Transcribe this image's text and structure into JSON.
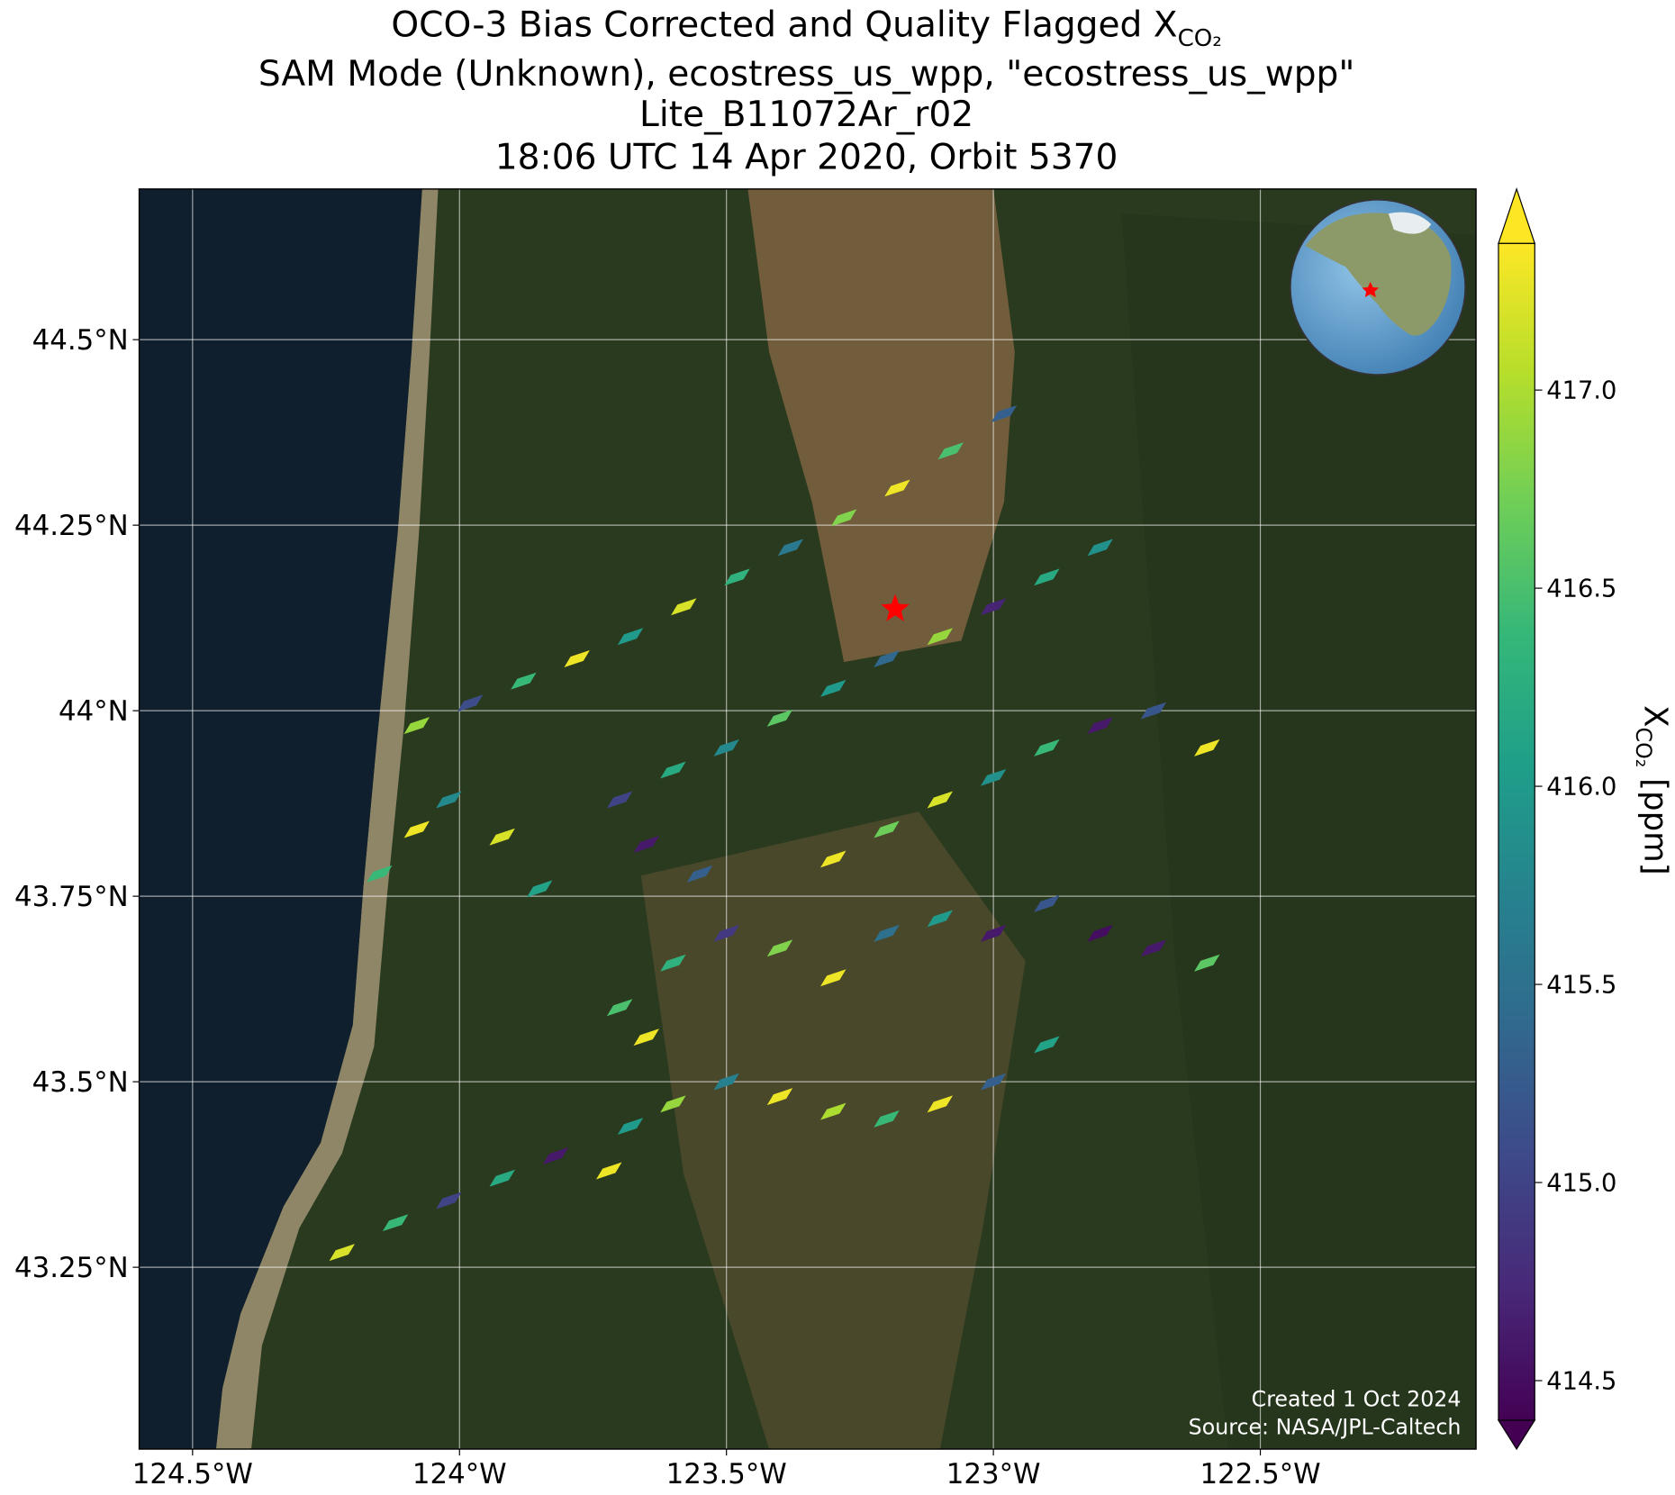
{
  "chart_data": {
    "type": "map",
    "title": {
      "line1": "OCO-3 Bias Corrected and Quality Flagged X",
      "line1_sub": "CO₂",
      "line2": "SAM Mode (Unknown), ecostress_us_wpp, \"ecostress_us_wpp\"",
      "line3": "Lite_B11072Ar_r02",
      "line4": "18:06 UTC 14 Apr 2020, Orbit 5370"
    },
    "xlim": [
      -124.6,
      -122.096
    ],
    "ylim": [
      43.005,
      44.703
    ],
    "xticks": [
      {
        "value": -124.5,
        "label": "124.5°W"
      },
      {
        "value": -124,
        "label": "124°W"
      },
      {
        "value": -123.5,
        "label": "123.5°W"
      },
      {
        "value": -123,
        "label": "123°W"
      },
      {
        "value": -122.5,
        "label": "122.5°W"
      }
    ],
    "yticks": [
      {
        "value": 44.5,
        "label": "44.5°N"
      },
      {
        "value": 44.25,
        "label": "44.25°N"
      },
      {
        "value": 44,
        "label": "44°N"
      },
      {
        "value": 43.75,
        "label": "43.75°N"
      },
      {
        "value": 43.5,
        "label": "43.5°N"
      },
      {
        "value": 43.25,
        "label": "43.25°N"
      }
    ],
    "grid": true,
    "colormap": "viridis",
    "clim": [
      414.4,
      417.37
    ],
    "colorbar_ticks": [
      {
        "value": 414.5,
        "label": "414.5"
      },
      {
        "value": 415,
        "label": "415.0"
      },
      {
        "value": 415.5,
        "label": "415.5"
      },
      {
        "value": 416,
        "label": "416.0"
      },
      {
        "value": 416.5,
        "label": "416.5"
      },
      {
        "value": 417,
        "label": "417.0"
      }
    ],
    "colorbar_label": {
      "main": "X",
      "sub": "CO₂",
      "unit": "[ppm]"
    },
    "site": {
      "lon": -123.184,
      "lat": 44.137,
      "color": "#ff0000"
    },
    "annotations": [
      "Created 1 Oct 2024",
      "Source: NASA/JPL-Caltech"
    ],
    "soundings": {
      "lon": [
        -124.08,
        -123.98,
        -123.88,
        -123.78,
        -123.68,
        -123.58,
        -123.48,
        -123.38,
        -123.28,
        -123.18,
        -123.08,
        -122.98,
        -123.7,
        -123.6,
        -123.5,
        -123.4,
        -123.3,
        -123.2,
        -123.1,
        -123.0,
        -122.9,
        -122.8,
        -123.3,
        -123.2,
        -123.1,
        -123.0,
        -122.9,
        -122.8,
        -122.7,
        -122.6,
        -123.6,
        -123.5,
        -123.4,
        -123.3,
        -123.2,
        -123.1,
        -123.0,
        -122.9,
        -122.8,
        -122.7,
        -122.6,
        -123.6,
        -123.5,
        -123.4,
        -123.3,
        -123.2,
        -123.1,
        -123.0,
        -122.9,
        -124.22,
        -124.12,
        -124.02,
        -123.92,
        -123.82,
        -123.72,
        -123.68,
        -124.15,
        -124.08,
        -124.02,
        -123.92,
        -123.85,
        -123.65,
        -123.55,
        -123.7,
        -123.65
      ],
      "lat": [
        43.98,
        44.01,
        44.04,
        44.07,
        44.1,
        44.14,
        44.18,
        44.22,
        44.26,
        44.3,
        44.35,
        44.4,
        43.88,
        43.92,
        43.95,
        43.99,
        44.03,
        44.07,
        44.1,
        44.14,
        44.18,
        44.22,
        43.8,
        43.84,
        43.88,
        43.91,
        43.95,
        43.98,
        44.0,
        43.95,
        43.66,
        43.7,
        43.68,
        43.64,
        43.7,
        43.72,
        43.7,
        43.74,
        43.7,
        43.68,
        43.66,
        43.47,
        43.5,
        43.48,
        43.46,
        43.45,
        43.47,
        43.5,
        43.55,
        43.27,
        43.31,
        43.34,
        43.37,
        43.4,
        43.38,
        43.44,
        43.78,
        43.84,
        43.88,
        43.83,
        43.76,
        43.82,
        43.78,
        43.6,
        43.56
      ],
      "xco2": [
        416.9,
        415.1,
        416.4,
        417.3,
        416.0,
        417.2,
        416.3,
        415.6,
        416.8,
        417.3,
        416.5,
        415.3,
        415.0,
        416.2,
        415.8,
        416.6,
        416.0,
        415.4,
        416.9,
        414.7,
        416.2,
        415.9,
        417.3,
        416.7,
        417.2,
        415.9,
        416.4,
        414.6,
        415.2,
        417.3,
        416.3,
        414.9,
        416.8,
        417.3,
        415.5,
        416.0,
        414.6,
        415.2,
        414.5,
        414.6,
        416.6,
        416.9,
        415.7,
        417.3,
        417.0,
        416.4,
        417.3,
        415.3,
        416.1,
        417.2,
        416.4,
        415.0,
        416.2,
        414.6,
        417.3,
        416.0,
        416.4,
        417.3,
        415.8,
        417.2,
        416.1,
        414.6,
        415.3,
        416.5,
        417.3
      ]
    }
  }
}
